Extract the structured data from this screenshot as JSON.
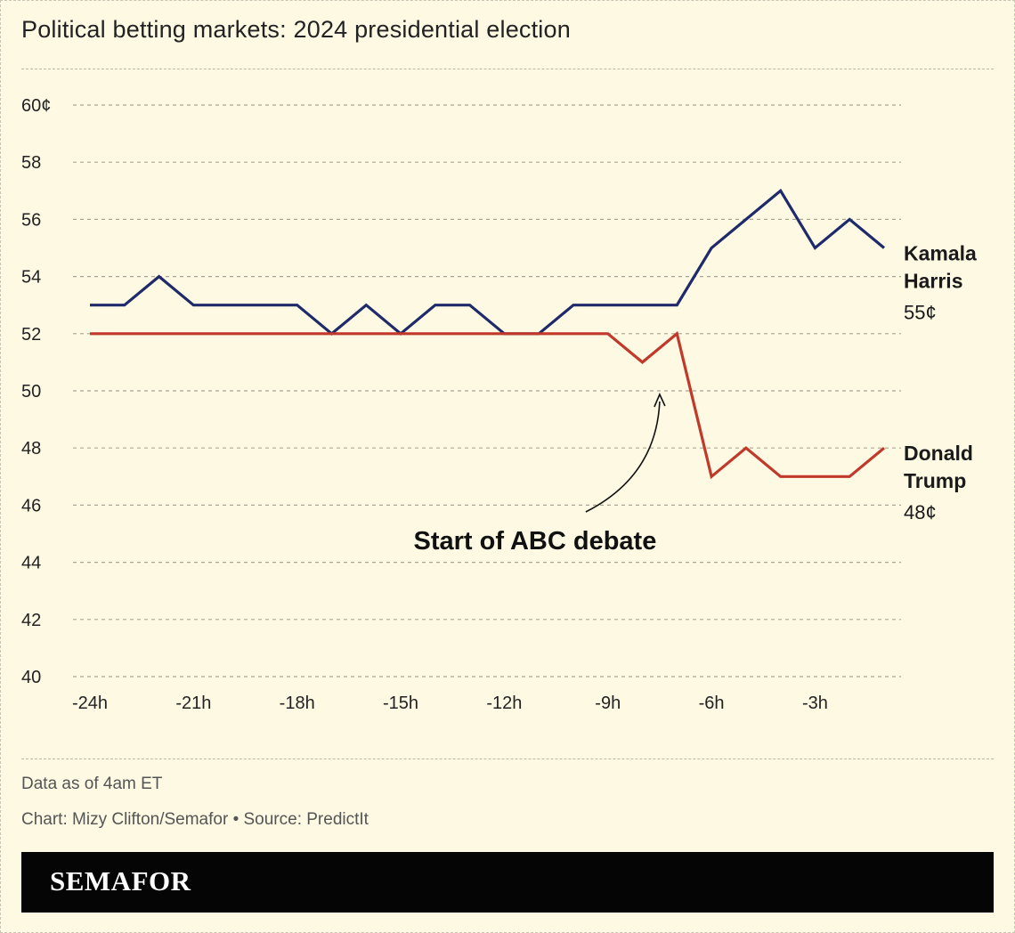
{
  "title": "Political betting markets: 2024 presidential election",
  "note": "Data as of 4am ET",
  "credit": "Chart: Mizy Clifton/Semafor • Source: PredictIt",
  "brand": "SEMAFOR",
  "colors": {
    "background": "#fdf9e3",
    "harris": "#1f2a6b",
    "trump": "#c0392b",
    "grid": "#a9a594",
    "text": "#222222"
  },
  "chart_data": {
    "type": "line",
    "xlabel": "",
    "ylabel": "",
    "xlim": [
      -24,
      -1
    ],
    "ylim": [
      40,
      60
    ],
    "y_ticks": [
      {
        "value": 60,
        "label": "60¢"
      },
      {
        "value": 58,
        "label": "58"
      },
      {
        "value": 56,
        "label": "56"
      },
      {
        "value": 54,
        "label": "54"
      },
      {
        "value": 52,
        "label": "52"
      },
      {
        "value": 50,
        "label": "50"
      },
      {
        "value": 48,
        "label": "48"
      },
      {
        "value": 46,
        "label": "46"
      },
      {
        "value": 44,
        "label": "44"
      },
      {
        "value": 42,
        "label": "42"
      },
      {
        "value": 40,
        "label": "40"
      }
    ],
    "x_ticks": [
      {
        "value": -24,
        "label": "-24h"
      },
      {
        "value": -21,
        "label": "-21h"
      },
      {
        "value": -18,
        "label": "-18h"
      },
      {
        "value": -15,
        "label": "-15h"
      },
      {
        "value": -12,
        "label": "-12h"
      },
      {
        "value": -9,
        "label": "-9h"
      },
      {
        "value": -6,
        "label": "-6h"
      },
      {
        "value": -3,
        "label": "-3h"
      }
    ],
    "grid": true,
    "x": [
      -24,
      -23,
      -22,
      -21,
      -20,
      -19,
      -18,
      -17,
      -16,
      -15,
      -14,
      -13,
      -12,
      -11,
      -10,
      -9,
      -8,
      -7,
      -6,
      -5,
      -4,
      -3,
      -2,
      -1
    ],
    "series": [
      {
        "id": "harris",
        "name_lines": [
          "Kamala",
          "Harris"
        ],
        "end_label": "55¢",
        "color": "#1f2a6b",
        "values": [
          53,
          53,
          54,
          53,
          53,
          53,
          53,
          52,
          53,
          52,
          53,
          53,
          52,
          52,
          53,
          53,
          53,
          53,
          55,
          56,
          57,
          55,
          56,
          55
        ]
      },
      {
        "id": "trump",
        "name_lines": [
          "Donald",
          "Trump"
        ],
        "end_label": "48¢",
        "color": "#c0392b",
        "values": [
          52,
          52,
          52,
          52,
          52,
          52,
          52,
          52,
          52,
          52,
          52,
          52,
          52,
          52,
          52,
          52,
          51,
          52,
          47,
          48,
          47,
          47,
          47,
          48
        ]
      }
    ],
    "annotations": [
      {
        "text": "Start of ABC debate",
        "x": -7.5,
        "y": 50
      }
    ]
  }
}
